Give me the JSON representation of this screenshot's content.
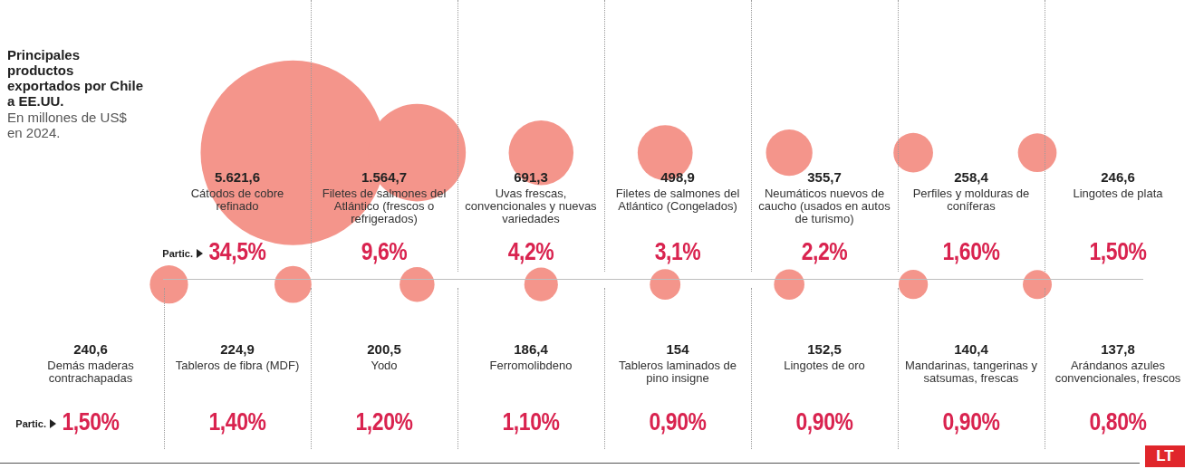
{
  "chart_data": {
    "type": "bubble",
    "title": "Principales productos exportados por Chile a EE.UU.",
    "subtitle": "En millones de US$ en 2024.",
    "categories": [
      "Cátodos de cobre refinado",
      "Filetes de salmones del Atlántico (frescos o refrigerados)",
      "Uvas frescas, convencionales y nuevas variedades",
      "Filetes de salmones del Atlántico (Congelados)",
      "Neumáticos nuevos de caucho (usados en autos de turismo)",
      "Perfiles y molduras de coníferas",
      "Lingotes de plata",
      "Demás maderas contrachapadas",
      "Tableros de fibra (MDF)",
      "Yodo",
      "Ferromolibdeno",
      "Tableros laminados de pino insigne",
      "Lingotes de oro",
      "Mandarinas, tangerinas y satsumas, frescas",
      "Arándanos azules convencionales, frescos"
    ],
    "values": [
      5621.6,
      1564.7,
      691.3,
      498.9,
      355.7,
      258.4,
      246.6,
      240.6,
      224.9,
      200.5,
      186.4,
      154,
      152.5,
      140.4,
      137.8
    ],
    "value_labels": [
      "5.621,6",
      "1.564,7",
      "691,3",
      "498,9",
      "355,7",
      "258,4",
      "246,6",
      "240,6",
      "224,9",
      "200,5",
      "186,4",
      "154",
      "152,5",
      "140,4",
      "137,8"
    ],
    "shares": [
      34.5,
      9.6,
      4.2,
      3.1,
      2.2,
      1.6,
      1.5,
      1.5,
      1.4,
      1.2,
      1.1,
      0.9,
      0.9,
      0.9,
      0.8
    ],
    "share_labels": [
      "34,5%",
      "9,6%",
      "4,2%",
      "3,1%",
      "2,2%",
      "1,60%",
      "1,50%",
      "1,50%",
      "1,40%",
      "1,20%",
      "1,10%",
      "0,90%",
      "0,90%",
      "0,90%",
      "0,80%"
    ],
    "share_caption": "Partic.",
    "logo": "LT",
    "color": "#f4958b",
    "data_labels": true,
    "tick_labels": false,
    "grid": false
  }
}
